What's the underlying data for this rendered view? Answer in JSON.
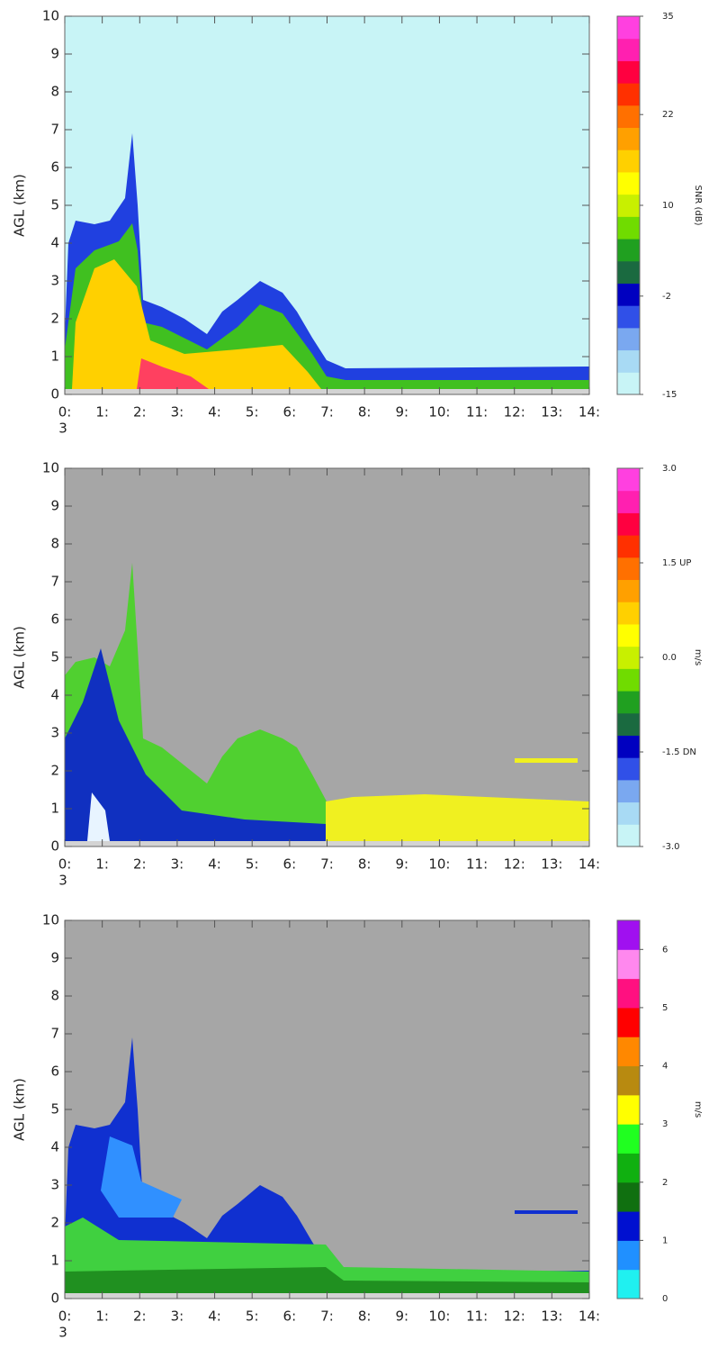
{
  "chart_data": [
    {
      "type": "heatmap",
      "ylabel": "AGL (km)",
      "colorbar_label": "SNR (dB)",
      "ylim": [
        0,
        10
      ],
      "yticks": [
        0,
        1,
        2,
        3,
        4,
        5,
        6,
        7,
        8,
        9,
        10
      ],
      "xlim": [
        0,
        14
      ],
      "xticks": [
        {
          "value": 0,
          "label": "0:"
        },
        {
          "value": 1,
          "label": "1:"
        },
        {
          "value": 2,
          "label": "2:"
        },
        {
          "value": 3,
          "label": "3:"
        },
        {
          "value": 4,
          "label": "4:"
        },
        {
          "value": 5,
          "label": "5:"
        },
        {
          "value": 6,
          "label": "6:"
        },
        {
          "value": 7,
          "label": "7:"
        },
        {
          "value": 8,
          "label": "8:"
        },
        {
          "value": 9,
          "label": "9:"
        },
        {
          "value": 10,
          "label": "10:"
        },
        {
          "value": 11,
          "label": "11:"
        },
        {
          "value": 12,
          "label": "12:"
        },
        {
          "value": 13,
          "label": "13:"
        },
        {
          "value": 14,
          "label": "14:"
        }
      ],
      "xtick_wrap": "3",
      "clim": [
        -15,
        35
      ],
      "cticks": [
        -15,
        -2,
        10,
        22,
        35
      ],
      "colors": [
        "#c8f4f6",
        "#a8daf4",
        "#7aa8f0",
        "#3050e8",
        "#0000c0",
        "#1a6a40",
        "#20a020",
        "#70dc00",
        "#c8f000",
        "#ffff00",
        "#ffd000",
        "#ffa000",
        "#ff7000",
        "#ff3000",
        "#ff0040",
        "#ff20b0",
        "#ff40e0"
      ]
    },
    {
      "type": "heatmap",
      "ylabel": "AGL (km)",
      "colorbar_label": "m/s",
      "ylim": [
        0,
        10
      ],
      "yticks": [
        0,
        1,
        2,
        3,
        4,
        5,
        6,
        7,
        8,
        9,
        10
      ],
      "xlim": [
        0,
        14
      ],
      "xticks": [
        {
          "value": 0,
          "label": "0:"
        },
        {
          "value": 1,
          "label": "1:"
        },
        {
          "value": 2,
          "label": "2:"
        },
        {
          "value": 3,
          "label": "3:"
        },
        {
          "value": 4,
          "label": "4:"
        },
        {
          "value": 5,
          "label": "5:"
        },
        {
          "value": 6,
          "label": "6:"
        },
        {
          "value": 7,
          "label": "7:"
        },
        {
          "value": 8,
          "label": "8:"
        },
        {
          "value": 9,
          "label": "9:"
        },
        {
          "value": 10,
          "label": "10:"
        },
        {
          "value": 11,
          "label": "11:"
        },
        {
          "value": 12,
          "label": "12:"
        },
        {
          "value": 13,
          "label": "13:"
        },
        {
          "value": 14,
          "label": "14:"
        }
      ],
      "xtick_wrap": "3",
      "clim": [
        -3,
        3
      ],
      "cticks": [
        {
          "value": -3,
          "label": "-3.0"
        },
        {
          "value": -1.5,
          "label": "-1.5 DN"
        },
        {
          "value": 0,
          "label": "0.0"
        },
        {
          "value": 1.5,
          "label": "1.5 UP"
        },
        {
          "value": 3,
          "label": "3.0"
        }
      ],
      "colors": [
        "#c8f4f6",
        "#a8daf4",
        "#7aa8f0",
        "#3050e8",
        "#0000c0",
        "#1a6a40",
        "#20a020",
        "#70dc00",
        "#c8f000",
        "#ffff00",
        "#ffd000",
        "#ffa000",
        "#ff7000",
        "#ff3000",
        "#ff0040",
        "#ff20b0",
        "#ff40e0"
      ]
    },
    {
      "type": "heatmap",
      "ylabel": "AGL (km)",
      "colorbar_label": "m/s",
      "ylim": [
        0,
        10
      ],
      "yticks": [
        0,
        1,
        2,
        3,
        4,
        5,
        6,
        7,
        8,
        9,
        10
      ],
      "xlim": [
        0,
        14
      ],
      "xticks": [
        {
          "value": 0,
          "label": "0:"
        },
        {
          "value": 1,
          "label": "1:"
        },
        {
          "value": 2,
          "label": "2:"
        },
        {
          "value": 3,
          "label": "3:"
        },
        {
          "value": 4,
          "label": "4:"
        },
        {
          "value": 5,
          "label": "5:"
        },
        {
          "value": 6,
          "label": "6:"
        },
        {
          "value": 7,
          "label": "7:"
        },
        {
          "value": 8,
          "label": "8:"
        },
        {
          "value": 9,
          "label": "9:"
        },
        {
          "value": 10,
          "label": "10:"
        },
        {
          "value": 11,
          "label": "11:"
        },
        {
          "value": 12,
          "label": "12:"
        },
        {
          "value": 13,
          "label": "13:"
        },
        {
          "value": 14,
          "label": "14:"
        }
      ],
      "xtick_wrap": "3",
      "clim": [
        0,
        6.5
      ],
      "cticks": [
        0,
        1,
        2,
        3,
        4,
        5,
        6
      ],
      "colors": [
        "#20f0f0",
        "#2090ff",
        "#0010d0",
        "#107010",
        "#10b010",
        "#20ff20",
        "#ffff00",
        "#b88a10",
        "#ff8800",
        "#ff0000",
        "#ff1080",
        "#ff88ee",
        "#a010f0"
      ]
    }
  ]
}
